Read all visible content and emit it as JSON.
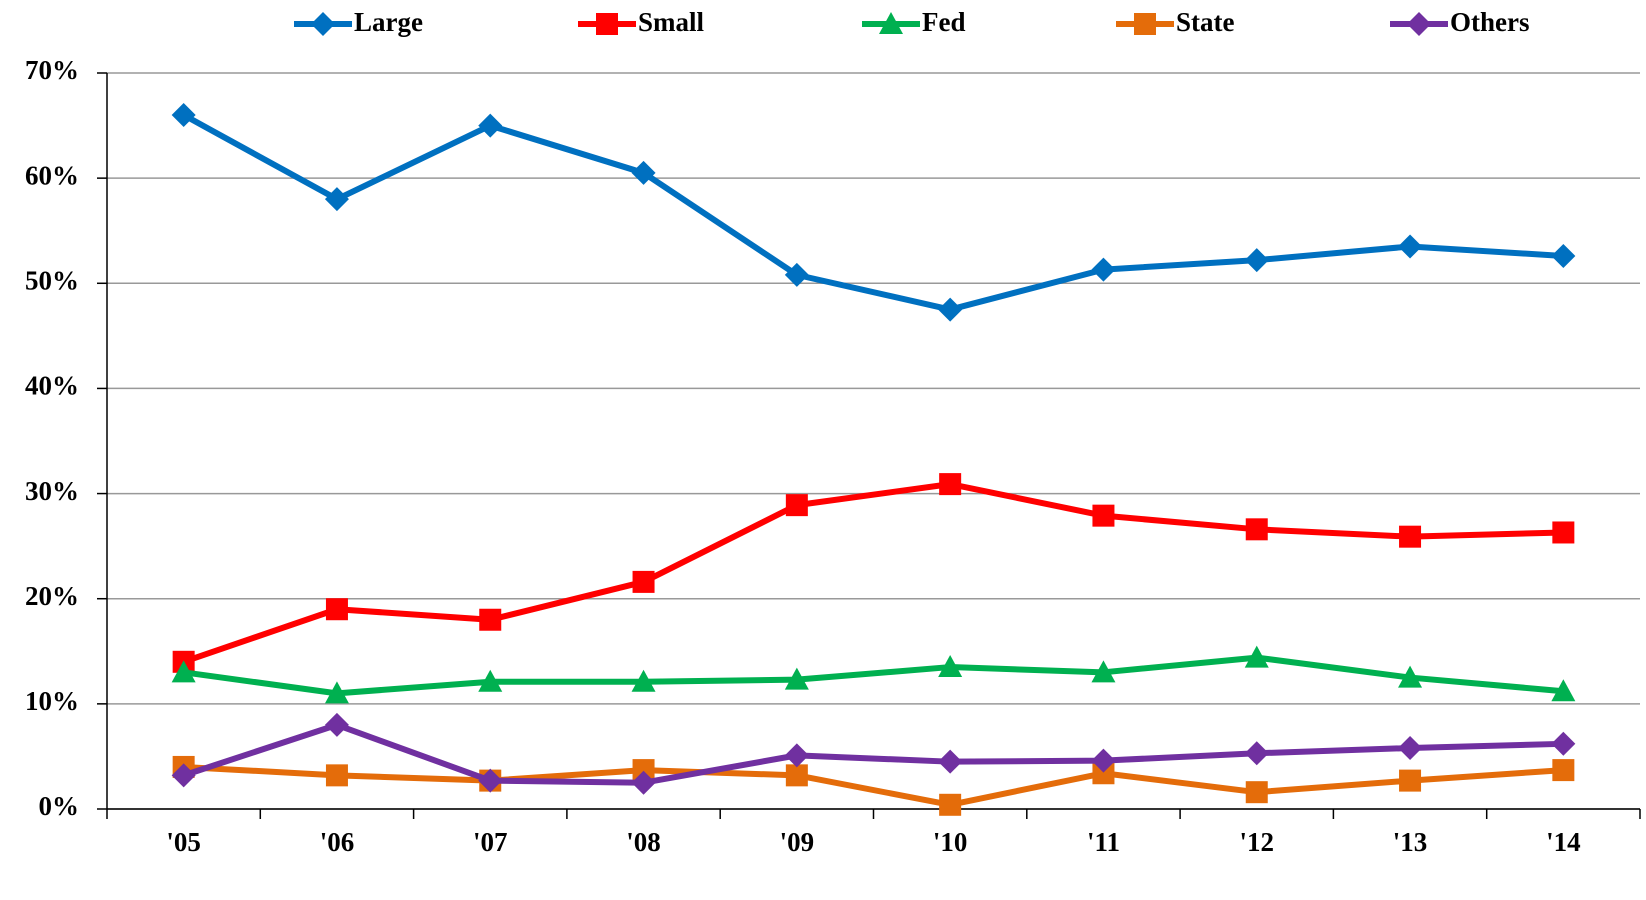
{
  "chart_data": {
    "type": "line",
    "categories": [
      "'05",
      "'06",
      "'07",
      "'08",
      "'09",
      "'10",
      "'11",
      "'12",
      "'13",
      "'14"
    ],
    "series": [
      {
        "name": "Large",
        "color": "#0070c0",
        "marker": "diamond",
        "values": [
          66,
          58,
          65,
          60.5,
          50.8,
          47.5,
          51.3,
          52.2,
          53.5,
          52.6
        ]
      },
      {
        "name": "Small",
        "color": "#ff0000",
        "marker": "square",
        "values": [
          14,
          19,
          18,
          21.6,
          28.9,
          30.9,
          27.9,
          26.6,
          25.9,
          26.3
        ]
      },
      {
        "name": "Fed",
        "color": "#00b050",
        "marker": "triangle",
        "values": [
          13,
          11,
          12.1,
          12.1,
          12.3,
          13.5,
          13,
          14.4,
          12.5,
          11.2
        ]
      },
      {
        "name": "State",
        "color": "#e46c0a",
        "marker": "square",
        "values": [
          4,
          3.2,
          2.7,
          3.7,
          3.2,
          0.4,
          3.4,
          1.6,
          2.7,
          3.7
        ]
      },
      {
        "name": "Others",
        "color": "#7030a0",
        "marker": "diamond",
        "values": [
          3.2,
          8,
          2.7,
          2.5,
          5.1,
          4.5,
          4.6,
          5.3,
          5.8,
          6.2
        ]
      }
    ],
    "ylim": [
      0,
      70
    ],
    "yticks": [
      {
        "value": 0,
        "label": "0%"
      },
      {
        "value": 10,
        "label": "10%"
      },
      {
        "value": 20,
        "label": "20%"
      },
      {
        "value": 30,
        "label": "30%"
      },
      {
        "value": 40,
        "label": "40%"
      },
      {
        "value": 50,
        "label": "50%"
      },
      {
        "value": 60,
        "label": "60%"
      },
      {
        "value": 70,
        "label": "70%"
      }
    ],
    "grid": true,
    "legend": "top"
  }
}
